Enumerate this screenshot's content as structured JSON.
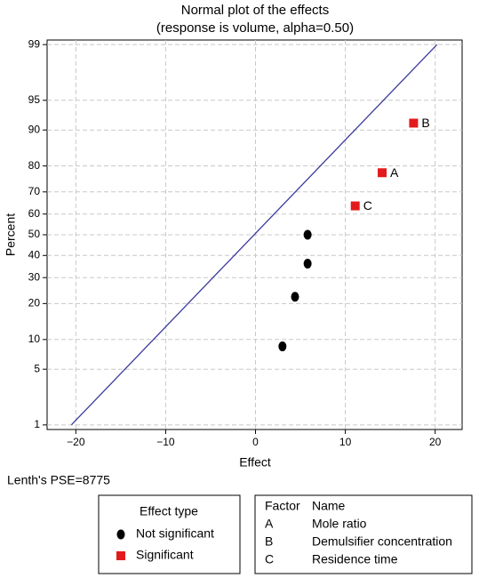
{
  "chart_data": {
    "type": "normal-probability",
    "title": "Normal plot of the effects",
    "subtitle": "(response is volume, alpha=0.50)",
    "x_label": "Effect",
    "y_label": "Percent",
    "xlim": [
      -23.2,
      23
    ],
    "xticks": [
      {
        "value": -20,
        "label": "−20"
      },
      {
        "value": -10,
        "label": "−10"
      },
      0,
      10,
      20
    ],
    "ylim": [
      0.86,
      99.14
    ],
    "yticks": [
      1,
      5,
      10,
      20,
      30,
      40,
      50,
      60,
      70,
      80,
      90,
      95,
      99
    ],
    "y_scale": "normal-probability",
    "grid": true,
    "reference_line": {
      "x": [
        -20.5,
        20.2
      ],
      "values": [
        1,
        99
      ],
      "color": "#3a3a9a"
    },
    "series": [
      {
        "name": "Not significant",
        "color": "#000000",
        "marker": "circle",
        "x": [
          3.0,
          4.4,
          5.8,
          5.8
        ],
        "values": [
          8.6,
          22.4,
          36.2,
          50
        ]
      },
      {
        "name": "Significant",
        "color": "#e31a1c",
        "marker": "square",
        "x": [
          11.1,
          14.1,
          17.6
        ],
        "values": [
          63.8,
          77.6,
          91.4
        ],
        "point_labels": [
          "C",
          "A",
          "B"
        ]
      }
    ],
    "legend_title": "Effect type",
    "footnote": "Lenth's PSE=8775",
    "factor_table": {
      "headers": [
        "Factor",
        "Name"
      ],
      "rows": [
        [
          "A",
          "Mole ratio"
        ],
        [
          "B",
          "Demulsifier concentration"
        ],
        [
          "C",
          "Residence time"
        ]
      ]
    }
  }
}
